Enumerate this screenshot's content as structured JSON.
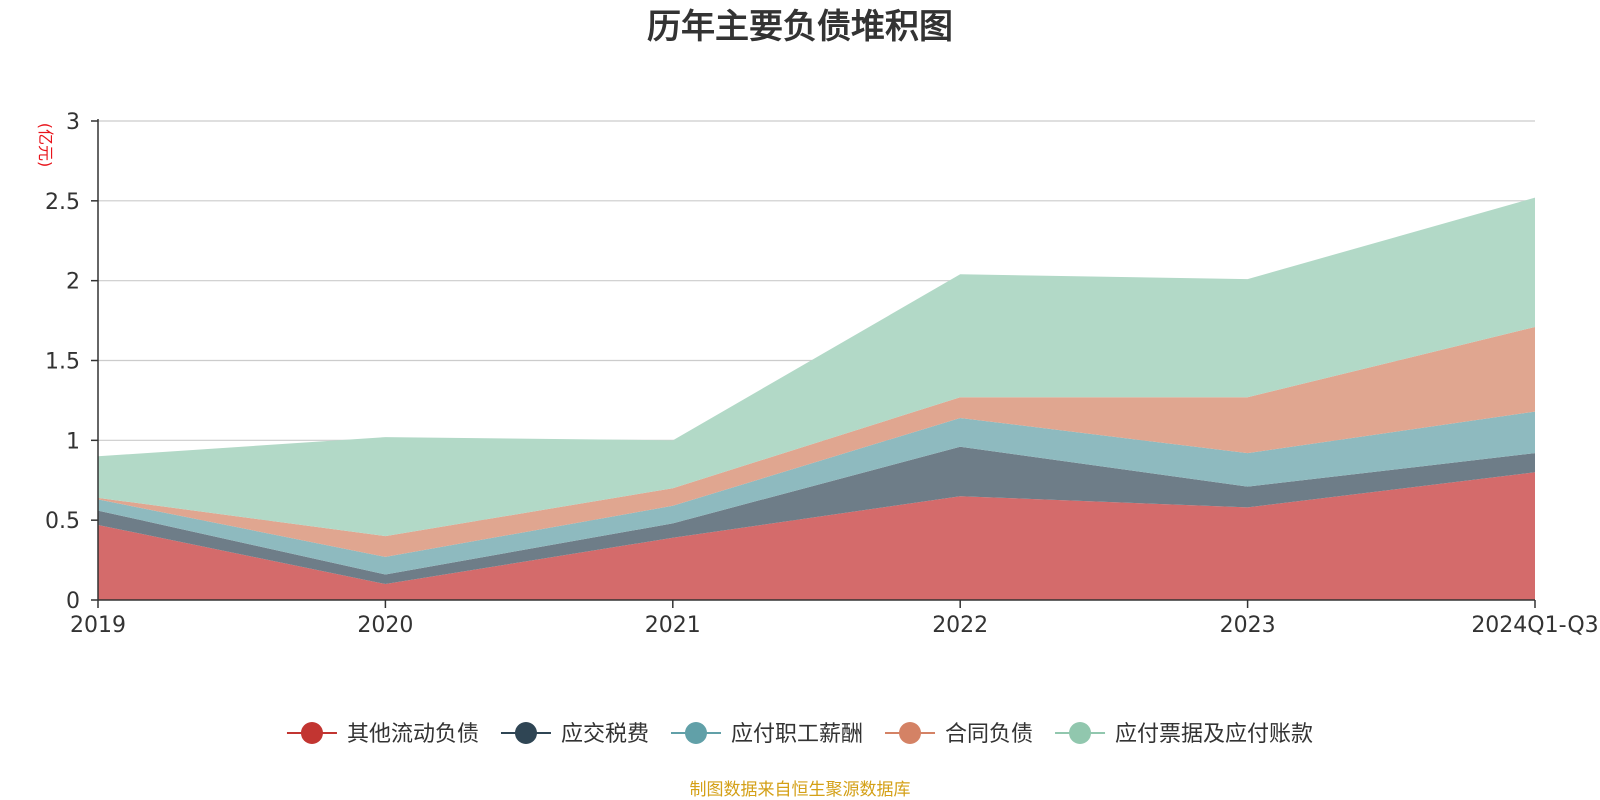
{
  "chart_data": {
    "type": "area",
    "stacked": true,
    "title": "历年主要负债堆积图",
    "ylabel": "(亿元)",
    "xlabel": "",
    "categories": [
      "2019",
      "2020",
      "2021",
      "2022",
      "2023",
      "2024Q1-Q3"
    ],
    "ylim": [
      0,
      3
    ],
    "yticks": [
      0,
      0.5,
      1,
      1.5,
      2,
      2.5,
      3
    ],
    "ytick_labels": [
      "0",
      "0.5",
      "1",
      "1.5",
      "2",
      "2.5",
      "3"
    ],
    "grid": true,
    "legend_position": "bottom",
    "series": [
      {
        "name": "其他流动负债",
        "color": "#d46b6b",
        "marker_color": "#c23531",
        "values": [
          0.47,
          0.1,
          0.39,
          0.65,
          0.58,
          0.8
        ]
      },
      {
        "name": "应交税费",
        "color": "#6e7d88",
        "marker_color": "#2f4554",
        "values": [
          0.09,
          0.06,
          0.09,
          0.31,
          0.13,
          0.12
        ]
      },
      {
        "name": "应付职工薪酬",
        "color": "#8ebabf",
        "marker_color": "#61a0a8",
        "values": [
          0.07,
          0.11,
          0.11,
          0.18,
          0.21,
          0.26
        ]
      },
      {
        "name": "合同负债",
        "color": "#e0a690",
        "marker_color": "#d48265",
        "values": [
          0.01,
          0.13,
          0.11,
          0.13,
          0.35,
          0.53
        ]
      },
      {
        "name": "应付票据及应付账款",
        "color": "#b2d9c7",
        "marker_color": "#91c7ae",
        "values": [
          0.26,
          0.62,
          0.3,
          0.77,
          0.74,
          0.81
        ]
      }
    ],
    "source": "制图数据来自恒生聚源数据库"
  }
}
